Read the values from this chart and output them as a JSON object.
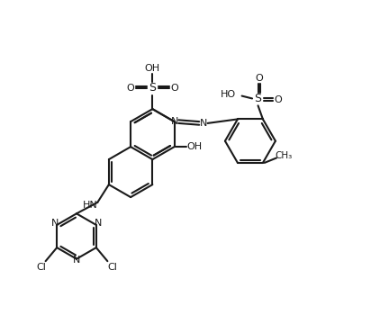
{
  "bg_color": "#ffffff",
  "line_color": "#1a1a1a",
  "lw": 1.5,
  "fs": 8.0,
  "fig_width": 4.32,
  "fig_height": 3.7,
  "dpi": 100,
  "xlim": [
    -1,
    11
  ],
  "ylim": [
    -0.5,
    9.5
  ]
}
